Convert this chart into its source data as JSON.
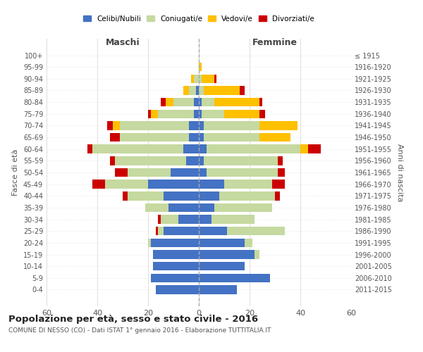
{
  "age_groups": [
    "0-4",
    "5-9",
    "10-14",
    "15-19",
    "20-24",
    "25-29",
    "30-34",
    "35-39",
    "40-44",
    "45-49",
    "50-54",
    "55-59",
    "60-64",
    "65-69",
    "70-74",
    "75-79",
    "80-84",
    "85-89",
    "90-94",
    "95-99",
    "100+"
  ],
  "birth_years": [
    "2011-2015",
    "2006-2010",
    "2001-2005",
    "1996-2000",
    "1991-1995",
    "1986-1990",
    "1981-1985",
    "1976-1980",
    "1971-1975",
    "1966-1970",
    "1961-1965",
    "1956-1960",
    "1951-1955",
    "1946-1950",
    "1941-1945",
    "1936-1940",
    "1931-1935",
    "1926-1930",
    "1921-1925",
    "1916-1920",
    "≤ 1915"
  ],
  "maschi": {
    "celibi": [
      17,
      19,
      18,
      18,
      19,
      14,
      8,
      12,
      14,
      20,
      11,
      5,
      6,
      4,
      4,
      2,
      2,
      1,
      0,
      0,
      0
    ],
    "coniugati": [
      0,
      0,
      0,
      0,
      1,
      2,
      7,
      9,
      14,
      17,
      17,
      28,
      36,
      27,
      27,
      14,
      8,
      3,
      2,
      0,
      0
    ],
    "vedovi": [
      0,
      0,
      0,
      0,
      0,
      0,
      0,
      0,
      0,
      0,
      0,
      0,
      0,
      0,
      3,
      3,
      3,
      2,
      1,
      0,
      0
    ],
    "divorziati": [
      0,
      0,
      0,
      0,
      0,
      1,
      1,
      0,
      2,
      5,
      5,
      2,
      2,
      4,
      2,
      1,
      2,
      0,
      0,
      0,
      0
    ]
  },
  "femmine": {
    "nubili": [
      15,
      28,
      18,
      22,
      18,
      11,
      5,
      6,
      8,
      10,
      3,
      2,
      3,
      2,
      2,
      1,
      1,
      0,
      0,
      0,
      0
    ],
    "coniugate": [
      0,
      0,
      0,
      2,
      3,
      23,
      17,
      23,
      22,
      19,
      28,
      29,
      37,
      22,
      22,
      9,
      5,
      2,
      1,
      0,
      0
    ],
    "vedove": [
      0,
      0,
      0,
      0,
      0,
      0,
      0,
      0,
      0,
      0,
      0,
      0,
      3,
      12,
      15,
      14,
      18,
      14,
      5,
      1,
      0
    ],
    "divorziate": [
      0,
      0,
      0,
      0,
      0,
      0,
      0,
      0,
      2,
      5,
      3,
      2,
      5,
      0,
      0,
      2,
      1,
      2,
      1,
      0,
      0
    ]
  },
  "colors": {
    "celibi_nubili": "#4472c4",
    "coniugati": "#c5d9a0",
    "vedovi": "#ffc000",
    "divorziati": "#cc0000"
  },
  "xlim": 60,
  "title_main": "Popolazione per età, sesso e stato civile - 2016",
  "title_sub": "COMUNE DI NESSO (CO) - Dati ISTAT 1° gennaio 2016 - Elaborazione TUTTITALIA.IT",
  "ylabel_left": "Fasce di età",
  "ylabel_right": "Anni di nascita",
  "legend_labels": [
    "Celibi/Nubili",
    "Coniugati/e",
    "Vedovi/e",
    "Divorziati/e"
  ]
}
